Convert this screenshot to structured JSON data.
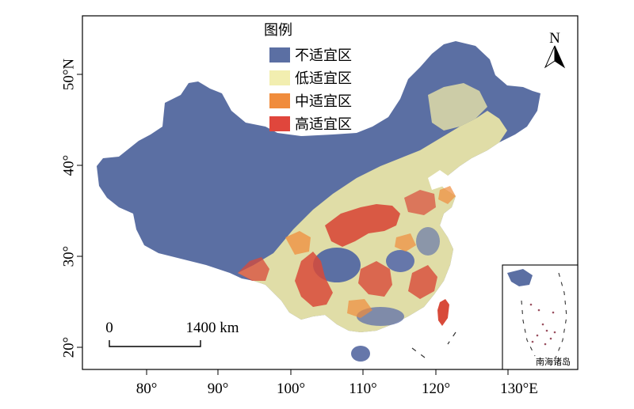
{
  "legend": {
    "title": "图例",
    "items": [
      {
        "label": "不适宜区",
        "color": "#5b6fa3"
      },
      {
        "label": "低适宜区",
        "color": "#f2eeb0"
      },
      {
        "label": "中适宜区",
        "color": "#f08c3c"
      },
      {
        "label": "高适宜区",
        "color": "#e0463c"
      }
    ]
  },
  "axes": {
    "x_ticks": [
      "80°",
      "90°",
      "100°",
      "110°",
      "120°",
      "130°E"
    ],
    "y_ticks": [
      "50°N",
      "40°",
      "30°",
      "20°"
    ]
  },
  "north_arrow": {
    "label": "N"
  },
  "scale_bar": {
    "start_label": "0",
    "end_label": "1400 km"
  },
  "inset": {
    "label": "南海诸岛"
  }
}
